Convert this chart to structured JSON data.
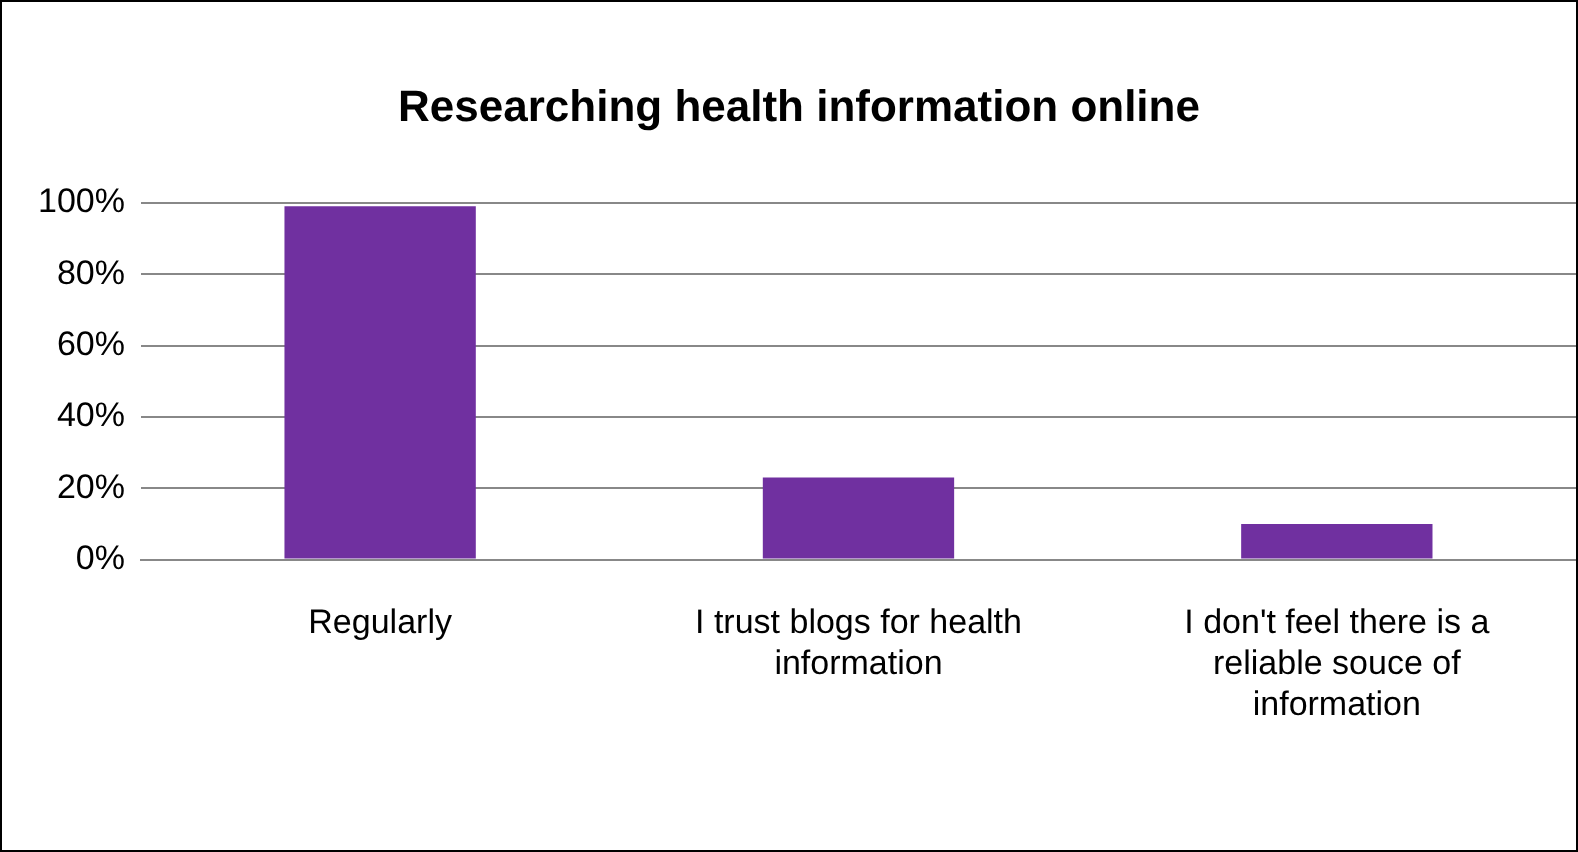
{
  "chart_data": {
    "type": "bar",
    "title": "Researching health information online",
    "categories": [
      "Regularly",
      "I trust blogs for health information",
      "I don't feel there is a reliable souce of information"
    ],
    "values": [
      99,
      23,
      10
    ],
    "color": "#7030a0",
    "ylim": [
      0,
      100
    ],
    "yticks": [
      {
        "value": 0,
        "label": "0%"
      },
      {
        "value": 20,
        "label": "20%"
      },
      {
        "value": 40,
        "label": "40%"
      },
      {
        "value": 60,
        "label": "60%"
      },
      {
        "value": 80,
        "label": "80%"
      },
      {
        "value": 100,
        "label": "100%"
      }
    ],
    "grid": "y",
    "legend": false
  }
}
